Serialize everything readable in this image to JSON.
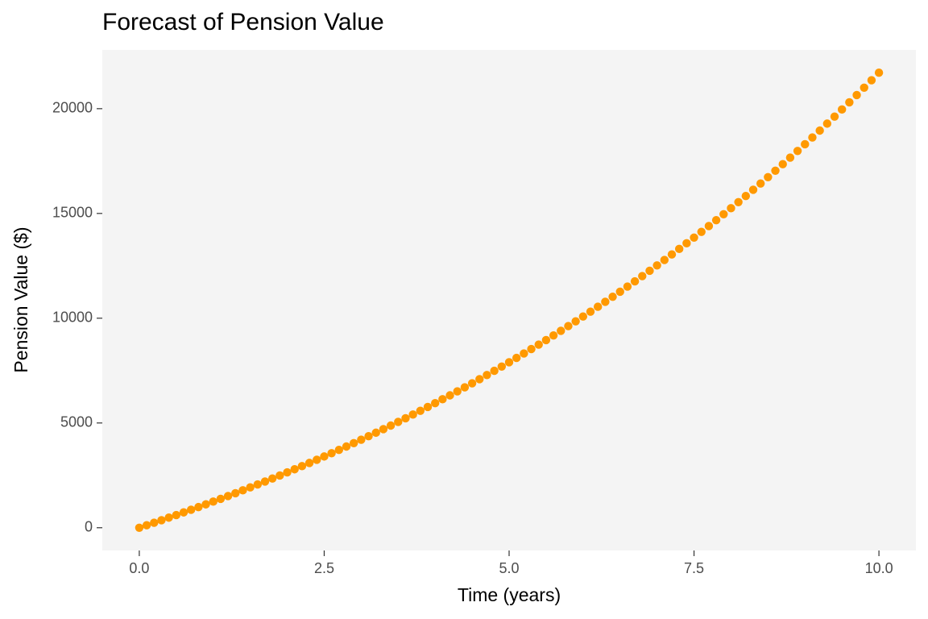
{
  "chart_data": {
    "type": "scatter",
    "title": "Forecast of Pension Value",
    "x_label": "Time (years)",
    "y_label": "Pension Value ($)",
    "color": "#FF9900",
    "x": [
      0,
      0.1,
      0.2,
      0.3,
      0.4,
      0.5,
      0.6,
      0.7,
      0.8,
      0.9,
      1,
      1.1,
      1.2,
      1.3,
      1.4,
      1.5,
      1.6,
      1.7,
      1.8,
      1.9,
      2,
      2.1,
      2.2,
      2.3,
      2.4,
      2.5,
      2.6,
      2.7,
      2.8,
      2.9,
      3,
      3.1,
      3.2,
      3.3,
      3.4,
      3.5,
      3.6,
      3.7,
      3.8,
      3.9,
      4,
      4.1,
      4.2,
      4.3,
      4.4,
      4.5,
      4.6,
      4.7,
      4.8,
      4.9,
      5,
      5.1,
      5.2,
      5.3,
      5.4,
      5.5,
      5.6,
      5.7,
      5.8,
      5.9,
      6,
      6.1,
      6.2,
      6.3,
      6.4,
      6.5,
      6.6,
      6.7,
      6.8,
      6.9,
      7,
      7.1,
      7.2,
      7.3,
      7.4,
      7.5,
      7.6,
      7.7,
      7.8,
      7.9,
      8,
      8.1,
      8.2,
      8.3,
      8.4,
      8.5,
      8.6,
      8.7,
      8.8,
      8.9,
      9,
      9.1,
      9.2,
      9.3,
      9.4,
      9.5,
      9.6,
      9.7,
      9.8,
      9.9,
      10
    ],
    "values": [
      0,
      119,
      238,
      360,
      482,
      606,
      732,
      858,
      986,
      1116,
      1247,
      1380,
      1514,
      1649,
      1786,
      1925,
      2065,
      2207,
      2350,
      2495,
      2642,
      2790,
      2940,
      3092,
      3245,
      3400,
      3557,
      3715,
      3876,
      4038,
      4202,
      4368,
      4535,
      4705,
      4876,
      5050,
      5225,
      5402,
      5582,
      5763,
      5946,
      6132,
      6319,
      6509,
      6701,
      6895,
      7091,
      7289,
      7490,
      7693,
      7898,
      8105,
      8315,
      8527,
      8741,
      8958,
      9178,
      9399,
      9624,
      9851,
      10080,
      10312,
      10546,
      10783,
      11023,
      11266,
      11511,
      11759,
      12010,
      12264,
      12520,
      12780,
      13042,
      13307,
      13576,
      13847,
      14121,
      14399,
      14679,
      14963,
      15250,
      15540,
      15833,
      16130,
      16430,
      16733,
      17040,
      17351,
      17664,
      17982,
      18302,
      18627,
      18955,
      19287,
      19622,
      19962,
      20305,
      20652,
      21003,
      21358,
      21716
    ],
    "xlim": [
      -0.5,
      10.5
    ],
    "ylim": [
      -1086,
      22802
    ],
    "xticks": [
      {
        "value": 0,
        "label": "0.0"
      },
      2.5,
      {
        "value": 5,
        "label": "5.0"
      },
      7.5,
      {
        "value": 10,
        "label": "10.0"
      }
    ],
    "yticks": [
      0,
      5000,
      10000,
      15000,
      20000
    ]
  }
}
